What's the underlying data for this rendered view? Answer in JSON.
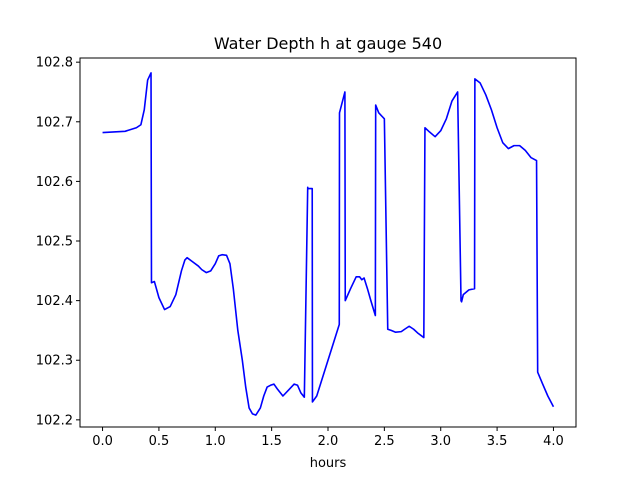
{
  "chart_data": {
    "type": "line",
    "title": "Water Depth h at gauge 540",
    "xlabel": "hours",
    "ylabel": "",
    "xlim": [
      -0.2,
      4.2
    ],
    "ylim": [
      102.188,
      102.807
    ],
    "xticks": [
      0.0,
      0.5,
      1.0,
      1.5,
      2.0,
      2.5,
      3.0,
      3.5,
      4.0
    ],
    "xtick_labels": [
      "0.0",
      "0.5",
      "1.0",
      "1.5",
      "2.0",
      "2.5",
      "3.0",
      "3.5",
      "4.0"
    ],
    "yticks": [
      102.2,
      102.3,
      102.4,
      102.5,
      102.6,
      102.7,
      102.8
    ],
    "ytick_labels": [
      "102.2",
      "102.3",
      "102.4",
      "102.5",
      "102.6",
      "102.7",
      "102.8"
    ],
    "grid": false,
    "series": [
      {
        "name": "",
        "color": "#0000ff",
        "x": [
          0.0,
          0.2,
          0.3,
          0.34,
          0.37,
          0.4,
          0.43,
          0.434,
          0.46,
          0.5,
          0.55,
          0.6,
          0.65,
          0.7,
          0.73,
          0.75,
          0.8,
          0.85,
          0.88,
          0.92,
          0.96,
          1.0,
          1.03,
          1.06,
          1.1,
          1.13,
          1.16,
          1.2,
          1.24,
          1.27,
          1.3,
          1.33,
          1.36,
          1.4,
          1.43,
          1.46,
          1.49,
          1.52,
          1.55,
          1.6,
          1.65,
          1.7,
          1.73,
          1.76,
          1.79,
          1.82,
          1.822,
          1.86,
          1.862,
          1.9,
          1.95,
          2.0,
          2.05,
          2.1,
          2.102,
          2.15,
          2.153,
          2.2,
          2.25,
          2.28,
          2.3,
          2.32,
          2.35,
          2.38,
          2.42,
          2.423,
          2.45,
          2.5,
          2.53,
          2.56,
          2.6,
          2.65,
          2.68,
          2.72,
          2.76,
          2.8,
          2.85,
          2.86,
          2.9,
          2.95,
          3.0,
          3.05,
          3.1,
          3.15,
          3.18,
          3.185,
          3.2,
          3.25,
          3.3,
          3.303,
          3.35,
          3.4,
          3.45,
          3.5,
          3.55,
          3.6,
          3.65,
          3.7,
          3.75,
          3.8,
          3.85,
          3.86,
          3.9,
          3.95,
          4.0
        ],
        "values": [
          102.682,
          102.684,
          102.69,
          102.695,
          102.72,
          102.77,
          102.782,
          102.43,
          102.432,
          102.405,
          102.385,
          102.39,
          102.41,
          102.45,
          102.468,
          102.472,
          102.465,
          102.458,
          102.452,
          102.447,
          102.45,
          102.462,
          102.475,
          102.477,
          102.476,
          102.462,
          102.42,
          102.35,
          102.3,
          102.255,
          102.22,
          102.21,
          102.208,
          102.22,
          102.24,
          102.255,
          102.258,
          102.26,
          102.252,
          102.24,
          102.25,
          102.26,
          102.258,
          102.245,
          102.238,
          102.59,
          102.588,
          102.588,
          102.23,
          102.24,
          102.27,
          102.3,
          102.33,
          102.36,
          102.715,
          102.75,
          102.4,
          102.42,
          102.44,
          102.44,
          102.435,
          102.438,
          102.42,
          102.4,
          102.375,
          102.728,
          102.715,
          102.705,
          102.352,
          102.35,
          102.347,
          102.348,
          102.352,
          102.357,
          102.352,
          102.345,
          102.338,
          102.69,
          102.683,
          102.675,
          102.685,
          102.705,
          102.735,
          102.75,
          102.4,
          102.398,
          102.41,
          102.418,
          102.42,
          102.772,
          102.765,
          102.745,
          102.72,
          102.69,
          102.665,
          102.655,
          102.66,
          102.66,
          102.652,
          102.64,
          102.635,
          102.28,
          102.262,
          102.24,
          102.222
        ]
      }
    ]
  }
}
